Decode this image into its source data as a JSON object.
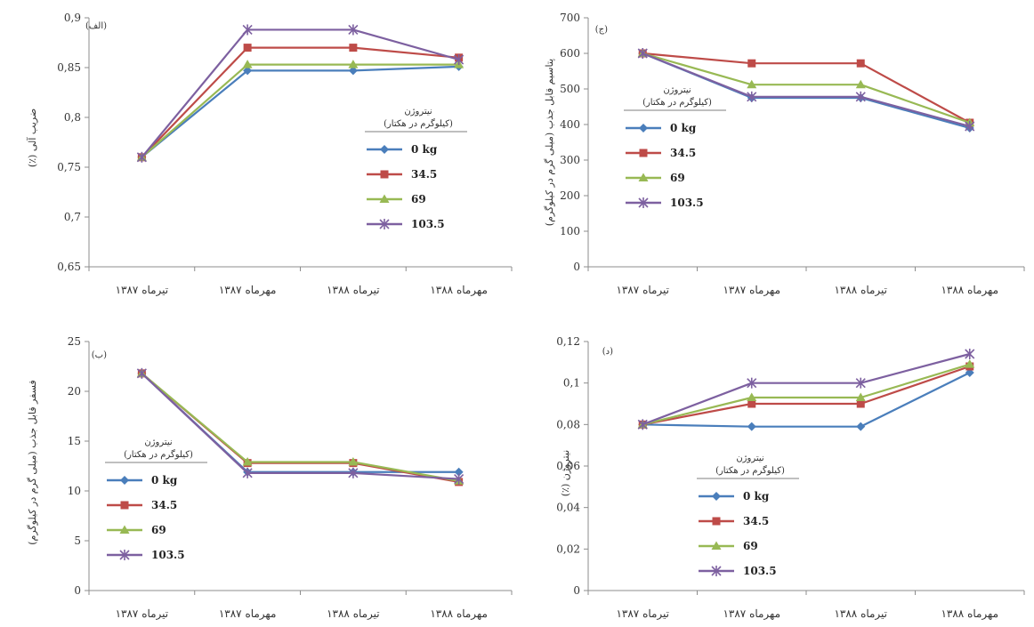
{
  "series_styles": [
    {
      "color": "#4a7ebb",
      "marker": "diamond"
    },
    {
      "color": "#be4b48",
      "marker": "square"
    },
    {
      "color": "#98b954",
      "marker": "triangle"
    },
    {
      "color": "#7d60a0",
      "marker": "cross"
    }
  ],
  "chart_data": [
    {
      "type": "line",
      "tag": "(الف)",
      "ylabel": "ضریب آلی (٪)",
      "categories": [
        "تیرماه ۱۳۸۷",
        "مهرماه ۱۳۸۷",
        "تیرماه ۱۳۸۸",
        "مهرماه ۱۳۸۸"
      ],
      "ylim": [
        0.65,
        0.9
      ],
      "yticks": [
        "0,65",
        "0,7",
        "0,75",
        "0,8",
        "0,85",
        "0,9"
      ],
      "grid": false,
      "legend": {
        "title1": "نیتروژن",
        "title2": "(کیلوگرم در هکتار)",
        "placement": "right"
      },
      "series": [
        {
          "name": "0 kg",
          "values": [
            0.76,
            0.847,
            0.847,
            0.851
          ]
        },
        {
          "name": "34.5",
          "values": [
            0.76,
            0.87,
            0.87,
            0.86
          ]
        },
        {
          "name": "69",
          "values": [
            0.76,
            0.853,
            0.853,
            0.853
          ]
        },
        {
          "name": "103.5",
          "values": [
            0.76,
            0.888,
            0.888,
            0.858
          ]
        }
      ]
    },
    {
      "type": "line",
      "tag": "(ج)",
      "ylabel": "پتاسیم قابل جذب (میلی گرم در کیلوگرم)",
      "categories": [
        "تیرماه ۱۳۸۷",
        "مهرماه ۱۳۸۷",
        "تیرماه ۱۳۸۸",
        "مهرماه ۱۳۸۸"
      ],
      "ylim": [
        0,
        700
      ],
      "yticks": [
        "0",
        "100",
        "200",
        "300",
        "400",
        "500",
        "600",
        "700"
      ],
      "grid": false,
      "legend": {
        "title1": "نیتروژن",
        "title2": "(کیلوگرم در هکتار)",
        "placement": "left"
      },
      "series": [
        {
          "name": "0 kg",
          "values": [
            600,
            475,
            475,
            390
          ]
        },
        {
          "name": "34.5",
          "values": [
            600,
            572,
            572,
            405
          ]
        },
        {
          "name": "69",
          "values": [
            600,
            512,
            512,
            405
          ]
        },
        {
          "name": "103.5",
          "values": [
            600,
            478,
            478,
            395
          ]
        }
      ]
    },
    {
      "type": "line",
      "tag": "(ب)",
      "ylabel": "فسفر قابل جذب (میلی گرم در کیلوگرم)",
      "categories": [
        "تیرماه ۱۳۸۷",
        "مهرماه ۱۳۸۷",
        "تیرماه ۱۳۸۸",
        "مهرماه ۱۳۸۸"
      ],
      "ylim": [
        0,
        25
      ],
      "yticks": [
        "0",
        "5",
        "10",
        "15",
        "20",
        "25"
      ],
      "grid": false,
      "legend": {
        "title1": "نیتروژن",
        "title2": "(کیلوگرم در هکتار)",
        "placement": "left"
      },
      "series": [
        {
          "name": "0 kg",
          "values": [
            21.8,
            11.9,
            11.9,
            11.9
          ]
        },
        {
          "name": "34.5",
          "values": [
            21.8,
            12.8,
            12.8,
            10.9
          ]
        },
        {
          "name": "69",
          "values": [
            21.8,
            12.9,
            12.9,
            11.0
          ]
        },
        {
          "name": "103.5",
          "values": [
            21.8,
            11.8,
            11.8,
            11.2
          ]
        }
      ]
    },
    {
      "type": "line",
      "tag": "(د)",
      "ylabel": "نیتروژن (٪)",
      "categories": [
        "تیرماه ۱۳۸۷",
        "مهرماه ۱۳۸۷",
        "تیرماه ۱۳۸۸",
        "مهرماه ۱۳۸۸"
      ],
      "ylim": [
        0,
        0.12
      ],
      "yticks": [
        "0",
        "0,02",
        "0,04",
        "0,06",
        "0,08",
        "0,1",
        "0,12"
      ],
      "grid": false,
      "legend": {
        "title1": "نیتروژن",
        "title2": "(کیلوگرم در هکتار)",
        "placement": "left"
      },
      "series": [
        {
          "name": "0 kg",
          "values": [
            0.08,
            0.079,
            0.079,
            0.105
          ]
        },
        {
          "name": "34.5",
          "values": [
            0.08,
            0.09,
            0.09,
            0.108
          ]
        },
        {
          "name": "69",
          "values": [
            0.08,
            0.093,
            0.093,
            0.109
          ]
        },
        {
          "name": "103.5",
          "values": [
            0.08,
            0.1,
            0.1,
            0.114
          ]
        }
      ]
    }
  ]
}
